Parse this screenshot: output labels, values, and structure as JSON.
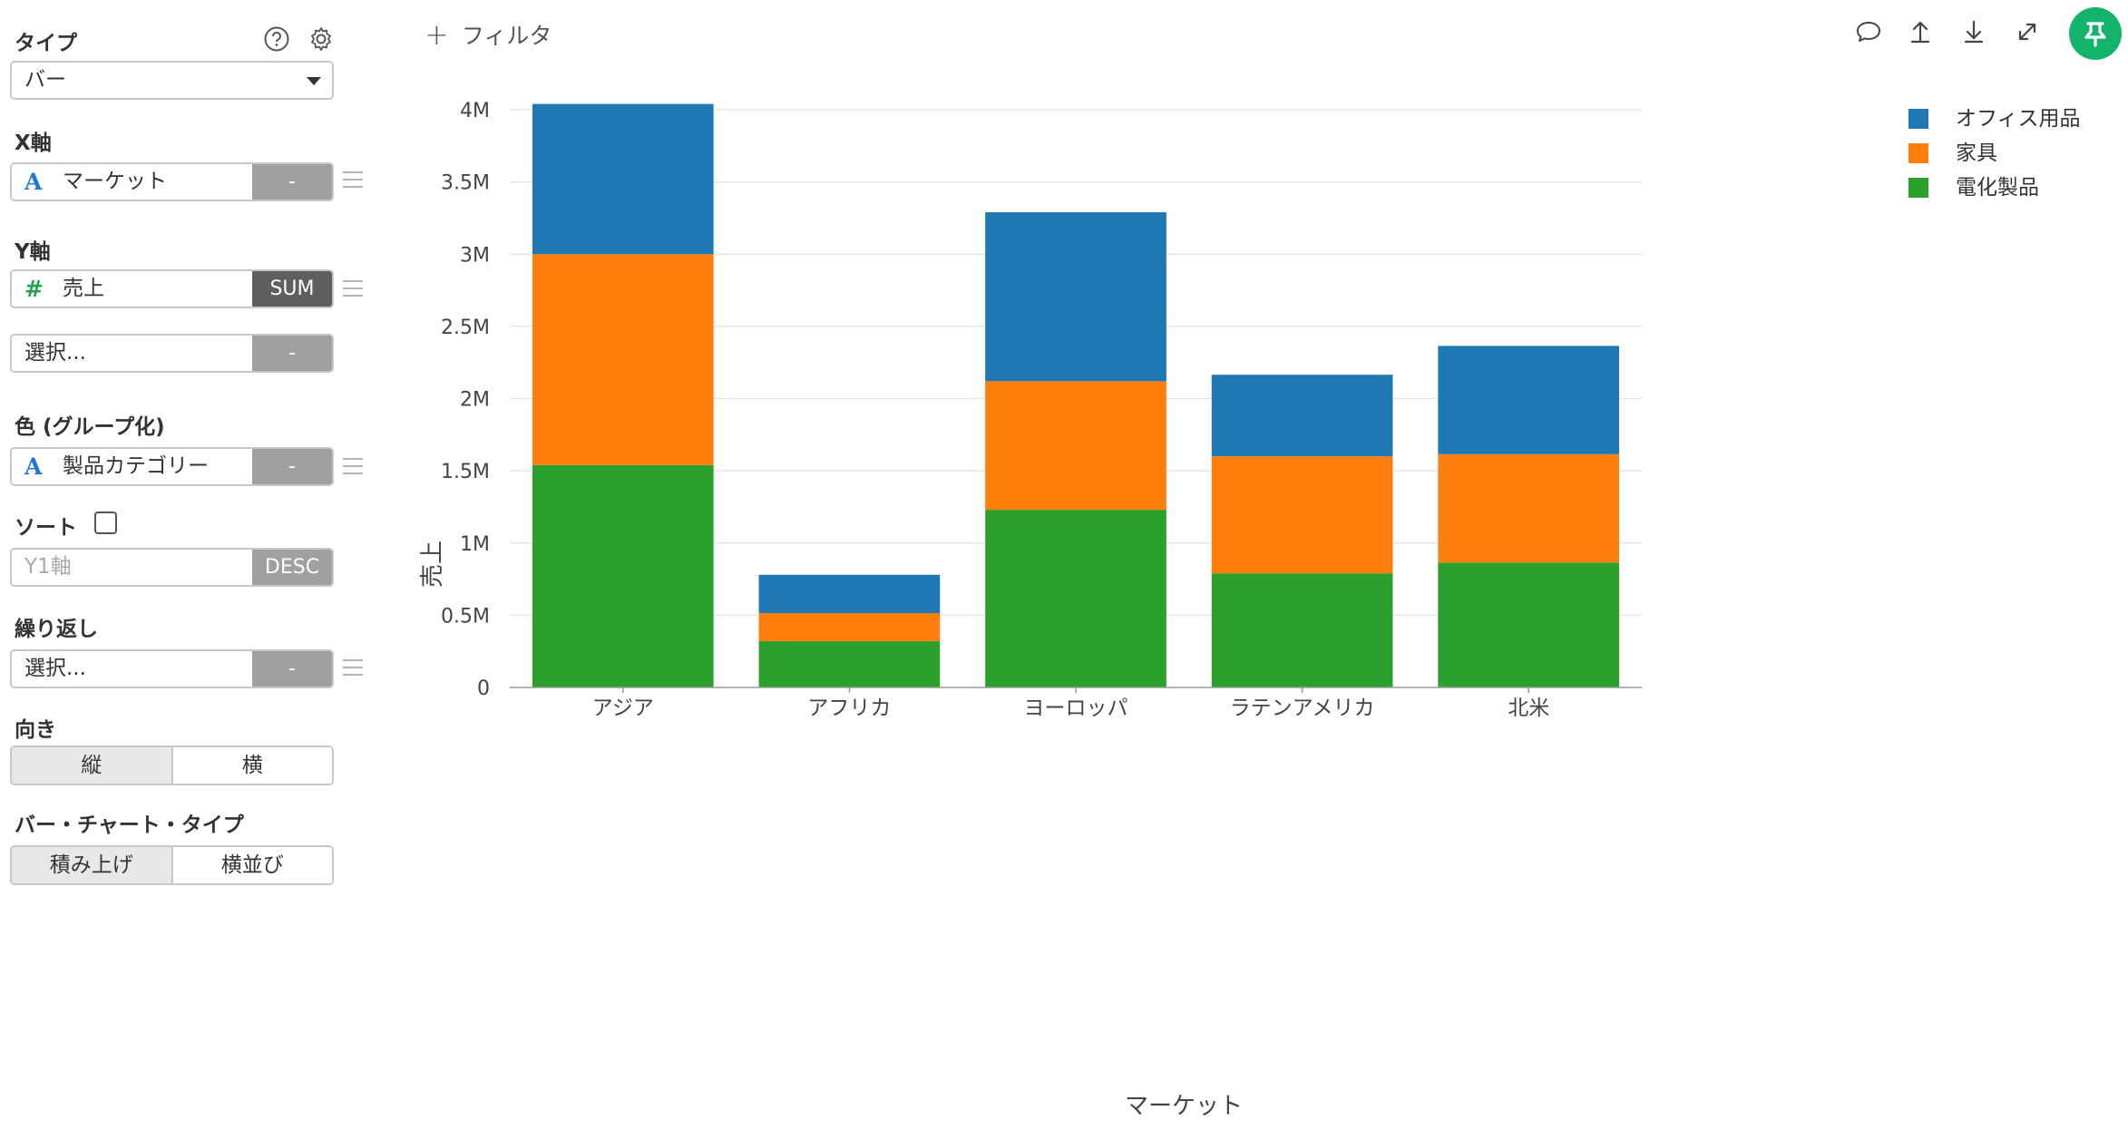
{
  "panel": {
    "type": {
      "title": "タイプ",
      "value": "バー"
    },
    "x_axis": {
      "title": "X軸",
      "field": "マーケット",
      "agg": "-"
    },
    "y_axis": {
      "title": "Y軸",
      "field": "売上",
      "agg": "SUM",
      "extra_placeholder": "選択...",
      "extra_agg": "-"
    },
    "color": {
      "title": "色 (グループ化)",
      "field": "製品カテゴリー",
      "agg": "-"
    },
    "sort": {
      "title": "ソート",
      "placeholder": "Y1軸",
      "order": "DESC"
    },
    "repeat": {
      "title": "繰り返し",
      "placeholder": "選択...",
      "agg": "-"
    },
    "orientation": {
      "title": "向き",
      "options": [
        "縦",
        "横"
      ],
      "selected": 0
    },
    "bar_type": {
      "title": "バー・チャート・タイプ",
      "options": [
        "積み上げ",
        "横並び"
      ],
      "selected": 0
    }
  },
  "toolbar": {
    "filter_label": "フィルタ",
    "icons": [
      "comment-icon",
      "upload-icon",
      "download-icon",
      "expand-icon",
      "pin-icon"
    ]
  },
  "chart_data": {
    "type": "bar",
    "stacked": true,
    "categories": [
      "アジア",
      "アフリカ",
      "ヨーロッパ",
      "ラテンアメリカ",
      "北米"
    ],
    "series": [
      {
        "name": "電化製品",
        "color": "#2ca02c",
        "values": [
          1540000,
          320000,
          1230000,
          790000,
          865000
        ]
      },
      {
        "name": "家具",
        "color": "#ff7f0e",
        "values": [
          1460000,
          195000,
          890000,
          810000,
          750000
        ]
      },
      {
        "name": "オフィス用品",
        "color": "#1f77b4",
        "values": [
          1040000,
          265000,
          1170000,
          565000,
          750000
        ]
      }
    ],
    "legend_order": [
      "オフィス用品",
      "家具",
      "電化製品"
    ],
    "xlabel": "マーケット",
    "ylabel": "売上",
    "ylim": [
      0,
      4000000
    ],
    "yticks": [
      0,
      500000,
      1000000,
      1500000,
      2000000,
      2500000,
      3000000,
      3500000,
      4000000
    ],
    "ytick_labels": [
      "0",
      "0.5M",
      "1M",
      "1.5M",
      "2M",
      "2.5M",
      "3M",
      "3.5M",
      "4M"
    ],
    "grid": true,
    "legend_position": "top-right"
  }
}
